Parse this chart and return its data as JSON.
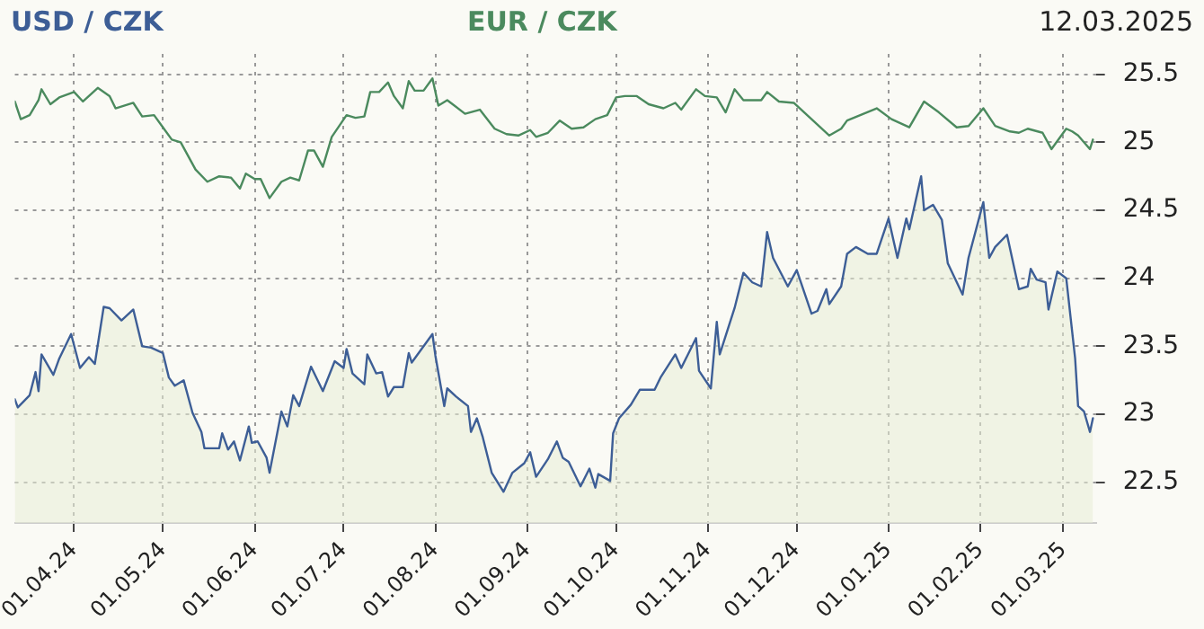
{
  "chart_data": {
    "type": "line",
    "legend": "top",
    "grid": true,
    "annotations": [
      "12.03.2025"
    ],
    "xlim": [
      "2024-03-12",
      "2025-03-12"
    ],
    "xticks": [
      {
        "value": "2024-04-01",
        "label": "01.04.24"
      },
      {
        "value": "2024-05-01",
        "label": "01.05.24"
      },
      {
        "value": "2024-06-01",
        "label": "01.06.24"
      },
      {
        "value": "2024-07-01",
        "label": "01.07.24"
      },
      {
        "value": "2024-08-01",
        "label": "01.08.24"
      },
      {
        "value": "2024-09-01",
        "label": "01.09.24"
      },
      {
        "value": "2024-10-01",
        "label": "01.10.24"
      },
      {
        "value": "2024-11-01",
        "label": "01.11.24"
      },
      {
        "value": "2024-12-01",
        "label": "01.12.24"
      },
      {
        "value": "2025-01-01",
        "label": "01.01.25"
      },
      {
        "value": "2025-02-01",
        "label": "01.02.25"
      },
      {
        "value": "2025-03-01",
        "label": "01.03.25"
      }
    ],
    "ylim": [
      22.2,
      25.65
    ],
    "yticks": [
      22.5,
      23,
      23.5,
      24,
      24.5,
      25,
      25.5
    ],
    "series": [
      {
        "name": "USD / CZK",
        "type": "area",
        "color": "#3d5e96",
        "x": [
          "2024-03-12",
          "2024-03-13",
          "2024-03-17",
          "2024-03-19",
          "2024-03-20",
          "2024-03-21",
          "2024-03-25",
          "2024-03-27",
          "2024-03-31",
          "2024-04-03",
          "2024-04-06",
          "2024-04-08",
          "2024-04-11",
          "2024-04-13",
          "2024-04-17",
          "2024-04-21",
          "2024-04-24",
          "2024-04-27",
          "2024-05-01",
          "2024-05-03",
          "2024-05-05",
          "2024-05-08",
          "2024-05-11",
          "2024-05-14",
          "2024-05-15",
          "2024-05-20",
          "2024-05-21",
          "2024-05-23",
          "2024-05-25",
          "2024-05-27",
          "2024-05-30",
          "2024-05-31",
          "2024-06-02",
          "2024-06-05",
          "2024-06-06",
          "2024-06-10",
          "2024-06-12",
          "2024-06-14",
          "2024-06-16",
          "2024-06-20",
          "2024-06-24",
          "2024-06-28",
          "2024-07-01",
          "2024-07-02",
          "2024-07-04",
          "2024-07-08",
          "2024-07-09",
          "2024-07-12",
          "2024-07-14",
          "2024-07-16",
          "2024-07-18",
          "2024-07-21",
          "2024-07-23",
          "2024-07-24",
          "2024-07-31",
          "2024-08-01",
          "2024-08-04",
          "2024-08-05",
          "2024-08-08",
          "2024-08-12",
          "2024-08-13",
          "2024-08-15",
          "2024-08-17",
          "2024-08-20",
          "2024-08-24",
          "2024-08-27",
          "2024-08-31",
          "2024-09-02",
          "2024-09-04",
          "2024-09-08",
          "2024-09-11",
          "2024-09-13",
          "2024-09-15",
          "2024-09-19",
          "2024-09-22",
          "2024-09-24",
          "2024-09-25",
          "2024-09-29",
          "2024-09-30",
          "2024-10-02",
          "2024-10-06",
          "2024-10-09",
          "2024-10-14",
          "2024-10-16",
          "2024-10-21",
          "2024-10-23",
          "2024-10-28",
          "2024-10-29",
          "2024-11-02",
          "2024-11-04",
          "2024-11-05",
          "2024-11-10",
          "2024-11-13",
          "2024-11-16",
          "2024-11-19",
          "2024-11-21",
          "2024-11-23",
          "2024-11-28",
          "2024-12-01",
          "2024-12-06",
          "2024-12-08",
          "2024-12-11",
          "2024-12-12",
          "2024-12-16",
          "2024-12-18",
          "2024-12-21",
          "2024-12-25",
          "2024-12-28",
          "2025-01-01",
          "2025-01-04",
          "2025-01-07",
          "2025-01-08",
          "2025-01-12",
          "2025-01-13",
          "2025-01-16",
          "2025-01-19",
          "2025-01-21",
          "2025-01-26",
          "2025-01-28",
          "2025-02-02",
          "2025-02-04",
          "2025-02-06",
          "2025-02-10",
          "2025-02-14",
          "2025-02-17",
          "2025-02-18",
          "2025-02-20",
          "2025-02-23",
          "2025-02-24",
          "2025-02-27",
          "2025-03-02",
          "2025-03-05",
          "2025-03-06",
          "2025-03-08",
          "2025-03-10",
          "2025-03-11"
        ],
        "values": [
          23.11,
          23.05,
          23.14,
          23.31,
          23.17,
          23.44,
          23.29,
          23.41,
          23.59,
          23.34,
          23.42,
          23.37,
          23.79,
          23.78,
          23.69,
          23.77,
          23.5,
          23.49,
          23.45,
          23.27,
          23.21,
          23.25,
          23.01,
          22.87,
          22.75,
          22.75,
          22.86,
          22.74,
          22.8,
          22.66,
          22.91,
          22.79,
          22.8,
          22.68,
          22.57,
          23.02,
          22.91,
          23.14,
          23.06,
          23.35,
          23.17,
          23.39,
          23.34,
          23.48,
          23.3,
          23.22,
          23.44,
          23.3,
          23.31,
          23.13,
          23.2,
          23.2,
          23.45,
          23.38,
          23.59,
          23.43,
          23.06,
          23.19,
          23.13,
          23.06,
          22.87,
          22.97,
          22.83,
          22.57,
          22.43,
          22.57,
          22.64,
          22.72,
          22.54,
          22.67,
          22.8,
          22.68,
          22.65,
          22.47,
          22.6,
          22.46,
          22.56,
          22.51,
          22.86,
          22.97,
          23.07,
          23.18,
          23.18,
          23.27,
          23.44,
          23.34,
          23.56,
          23.32,
          23.19,
          23.68,
          23.44,
          23.78,
          24.04,
          23.97,
          23.94,
          24.34,
          24.15,
          23.94,
          24.06,
          23.74,
          23.76,
          23.92,
          23.81,
          23.94,
          24.18,
          24.23,
          24.18,
          24.18,
          24.44,
          24.15,
          24.44,
          24.36,
          24.75,
          24.5,
          24.54,
          24.43,
          24.11,
          23.88,
          24.15,
          24.56,
          24.15,
          24.23,
          24.32,
          23.92,
          23.94,
          24.07,
          23.99,
          23.97,
          23.77,
          24.05,
          24.0,
          23.41,
          23.06,
          23.02,
          22.87,
          22.97
        ]
      },
      {
        "name": "EUR / CZK",
        "type": "line",
        "color": "#4b8a5e",
        "x": [
          "2024-03-12",
          "2024-03-14",
          "2024-03-17",
          "2024-03-20",
          "2024-03-21",
          "2024-03-24",
          "2024-03-27",
          "2024-04-01",
          "2024-04-04",
          "2024-04-09",
          "2024-04-13",
          "2024-04-15",
          "2024-04-21",
          "2024-04-24",
          "2024-04-28",
          "2024-05-01",
          "2024-05-04",
          "2024-05-07",
          "2024-05-12",
          "2024-05-16",
          "2024-05-20",
          "2024-05-24",
          "2024-05-27",
          "2024-05-29",
          "2024-06-01",
          "2024-06-03",
          "2024-06-06",
          "2024-06-10",
          "2024-06-13",
          "2024-06-16",
          "2024-06-19",
          "2024-06-21",
          "2024-06-24",
          "2024-06-27",
          "2024-07-02",
          "2024-07-05",
          "2024-07-08",
          "2024-07-10",
          "2024-07-13",
          "2024-07-16",
          "2024-07-18",
          "2024-07-21",
          "2024-07-23",
          "2024-07-25",
          "2024-07-28",
          "2024-07-31",
          "2024-08-02",
          "2024-08-05",
          "2024-08-11",
          "2024-08-16",
          "2024-08-21",
          "2024-08-25",
          "2024-08-29",
          "2024-09-02",
          "2024-09-04",
          "2024-09-08",
          "2024-09-12",
          "2024-09-16",
          "2024-09-20",
          "2024-09-24",
          "2024-09-28",
          "2024-10-01",
          "2024-10-04",
          "2024-10-08",
          "2024-10-12",
          "2024-10-17",
          "2024-10-21",
          "2024-10-23",
          "2024-10-28",
          "2024-10-31",
          "2024-11-04",
          "2024-11-07",
          "2024-11-10",
          "2024-11-13",
          "2024-11-19",
          "2024-11-21",
          "2024-11-25",
          "2024-11-30",
          "2024-12-06",
          "2024-12-12",
          "2024-12-16",
          "2024-12-18",
          "2024-12-28",
          "2025-01-02",
          "2025-01-08",
          "2025-01-13",
          "2025-01-18",
          "2025-01-24",
          "2025-01-28",
          "2025-02-02",
          "2025-02-06",
          "2025-02-11",
          "2025-02-14",
          "2025-02-17",
          "2025-02-22",
          "2025-02-25",
          "2025-03-02",
          "2025-03-04",
          "2025-03-06",
          "2025-03-10",
          "2025-03-11"
        ],
        "values": [
          25.3,
          25.17,
          25.2,
          25.31,
          25.39,
          25.28,
          25.33,
          25.37,
          25.3,
          25.4,
          25.34,
          25.25,
          25.29,
          25.19,
          25.2,
          25.11,
          25.02,
          25.0,
          24.8,
          24.71,
          24.75,
          24.74,
          24.66,
          24.77,
          24.73,
          24.73,
          24.59,
          24.71,
          24.74,
          24.72,
          24.94,
          24.94,
          24.82,
          25.04,
          25.2,
          25.18,
          25.19,
          25.37,
          25.37,
          25.44,
          25.34,
          25.25,
          25.45,
          25.38,
          25.38,
          25.47,
          25.27,
          25.31,
          25.21,
          25.24,
          25.1,
          25.06,
          25.05,
          25.09,
          25.04,
          25.07,
          25.16,
          25.1,
          25.11,
          25.17,
          25.2,
          25.33,
          25.34,
          25.34,
          25.28,
          25.25,
          25.29,
          25.24,
          25.39,
          25.34,
          25.33,
          25.22,
          25.39,
          25.31,
          25.31,
          25.37,
          25.3,
          25.29,
          25.17,
          25.05,
          25.1,
          25.16,
          25.25,
          25.17,
          25.11,
          25.3,
          25.22,
          25.11,
          25.12,
          25.25,
          25.12,
          25.08,
          25.07,
          25.1,
          25.07,
          24.95,
          25.1,
          25.08,
          25.05,
          24.95,
          25.02
        ]
      }
    ]
  }
}
